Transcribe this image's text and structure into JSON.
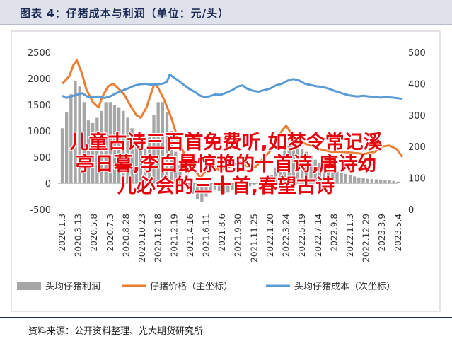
{
  "page": {
    "figure_title": "图表 4：仔猪成本与利润（单位：元/头）",
    "source": "资料来源：公开资料整理、光大期货研究所",
    "overlay_lines": [
      "儿童古诗三百首免费听,如梦令常记溪",
      "亭日暮,李白最惊艳的十首诗,唐诗幼",
      "儿必会的三十首,春望古诗"
    ]
  },
  "colors": {
    "profit": "#a6a6a6",
    "price": "#ed7d31",
    "cost": "#5b9bd5",
    "title_bg": "#dfe2ea",
    "overlay": "#e8000b"
  },
  "chart_data": {
    "type": "bar+line",
    "title": "仔猪成本与利润（单位：元/头）",
    "categories": [
      "2020.1.3",
      "2020.3.13",
      "2020.5.8",
      "2020.7.3",
      "2020.8.28",
      "2020.10.23",
      "2020.12.18",
      "2021.2.19",
      "2021.4.16",
      "2021.6.11",
      "2021.8.6",
      "2021.9.30",
      "2021.11.25",
      "2022.1.20",
      "2022.3.24",
      "2022.5.19",
      "2022.7.14",
      "2022.9.8",
      "2022.11.3",
      "2022.12.29",
      "2023.3.9",
      "2023.5.4"
    ],
    "y_left": {
      "range": [
        -500,
        2500
      ],
      "ticks": [
        -500,
        0,
        500,
        1000,
        1500,
        2000,
        2500
      ]
    },
    "y_right": {
      "range": [
        0,
        500
      ],
      "ticks": [
        0,
        100,
        200,
        300,
        400,
        500
      ]
    },
    "series": [
      {
        "name": "头均仔猪利润",
        "kind": "bar",
        "axis": "left",
        "points": [
          [
            0,
            1050
          ],
          [
            0.6,
            1350
          ],
          [
            1.2,
            1700
          ],
          [
            1.8,
            1950
          ],
          [
            2.4,
            1850
          ],
          [
            3.0,
            1550
          ],
          [
            3.6,
            1200
          ],
          [
            4.2,
            1150
          ],
          [
            4.8,
            1250
          ],
          [
            5.4,
            1380
          ],
          [
            6.0,
            1550
          ],
          [
            6.6,
            1550
          ],
          [
            7.2,
            1500
          ],
          [
            7.8,
            1450
          ],
          [
            8.4,
            1380
          ],
          [
            9.0,
            1250
          ],
          [
            9.6,
            1050
          ],
          [
            10.2,
            850
          ],
          [
            10.8,
            700
          ],
          [
            11.4,
            650
          ],
          [
            12.0,
            950
          ],
          [
            12.6,
            1300
          ],
          [
            13.2,
            1550
          ],
          [
            13.8,
            1550
          ],
          [
            14.4,
            1350
          ],
          [
            15.0,
            1000
          ],
          [
            15.6,
            600
          ],
          [
            16.2,
            350
          ],
          [
            16.8,
            100
          ],
          [
            17.4,
            -80
          ],
          [
            18.0,
            -200
          ],
          [
            18.6,
            -300
          ],
          [
            19.2,
            -350
          ],
          [
            19.8,
            -250
          ],
          [
            20.4,
            -150
          ],
          [
            21.0,
            -120
          ],
          [
            21.6,
            -150
          ],
          [
            22.2,
            -200
          ],
          [
            22.8,
            -180
          ],
          [
            23.4,
            -120
          ],
          [
            24.0,
            -80
          ],
          [
            24.6,
            -60
          ],
          [
            25.2,
            -80
          ],
          [
            25.8,
            -60
          ],
          [
            26.4,
            -30
          ],
          [
            27.0,
            0
          ],
          [
            27.6,
            20
          ],
          [
            28.2,
            60
          ],
          [
            28.8,
            150
          ],
          [
            29.4,
            300
          ],
          [
            30.0,
            550
          ],
          [
            30.6,
            720
          ],
          [
            31.2,
            780
          ],
          [
            31.8,
            760
          ],
          [
            32.4,
            700
          ],
          [
            33.0,
            650
          ],
          [
            33.6,
            600
          ],
          [
            34.2,
            530
          ],
          [
            34.8,
            450
          ],
          [
            35.4,
            380
          ],
          [
            36.0,
            330
          ],
          [
            36.6,
            280
          ],
          [
            37.2,
            250
          ],
          [
            37.8,
            220
          ],
          [
            38.4,
            200
          ],
          [
            39.0,
            180
          ],
          [
            39.6,
            150
          ],
          [
            40.2,
            130
          ],
          [
            40.8,
            110
          ],
          [
            41.4,
            95
          ],
          [
            42.0,
            85
          ],
          [
            42.6,
            80
          ],
          [
            43.2,
            75
          ],
          [
            43.8,
            70
          ],
          [
            44.4,
            65
          ],
          [
            45.0,
            60
          ],
          [
            45.6,
            45
          ],
          [
            46.2,
            30
          ],
          [
            46.8,
            15
          ]
        ]
      },
      {
        "name": "仔猪价格（主坐标）",
        "kind": "line",
        "axis": "left",
        "points": [
          [
            0,
            1900
          ],
          [
            1,
            2050
          ],
          [
            1.5,
            2250
          ],
          [
            2,
            2350
          ],
          [
            2.7,
            2100
          ],
          [
            3.3,
            1800
          ],
          [
            4.2,
            1550
          ],
          [
            5,
            1450
          ],
          [
            5.5,
            1650
          ],
          [
            6.3,
            1850
          ],
          [
            7,
            1900
          ],
          [
            7.8,
            1800
          ],
          [
            8.5,
            1700
          ],
          [
            9.3,
            1500
          ],
          [
            10.2,
            1300
          ],
          [
            10.8,
            1250
          ],
          [
            11.6,
            1450
          ],
          [
            12.3,
            1750
          ],
          [
            12.7,
            1900
          ],
          [
            13.2,
            1820
          ],
          [
            14,
            1600
          ],
          [
            15,
            1250
          ],
          [
            16,
            800
          ],
          [
            17,
            500
          ],
          [
            17.7,
            350
          ],
          [
            18.5,
            200
          ],
          [
            19,
            100
          ],
          [
            19.8,
            250
          ],
          [
            20.6,
            350
          ],
          [
            21.6,
            250
          ],
          [
            22.4,
            280
          ],
          [
            23.5,
            350
          ],
          [
            24.5,
            400
          ],
          [
            25.5,
            320
          ],
          [
            26.5,
            300
          ],
          [
            27.5,
            450
          ],
          [
            28.5,
            600
          ],
          [
            29.5,
            800
          ],
          [
            30.2,
            1000
          ],
          [
            30.8,
            1100
          ],
          [
            31.5,
            950
          ],
          [
            32.5,
            800
          ],
          [
            33.5,
            750
          ],
          [
            34.5,
            700
          ],
          [
            35.5,
            650
          ],
          [
            37,
            600
          ],
          [
            38.5,
            600
          ],
          [
            40,
            580
          ],
          [
            41.5,
            560
          ],
          [
            43,
            600
          ],
          [
            44,
            700
          ],
          [
            45,
            720
          ],
          [
            46,
            650
          ],
          [
            46.8,
            500
          ]
        ]
      },
      {
        "name": "头均仔猪成本（次坐标）",
        "kind": "line",
        "axis": "right",
        "points": [
          [
            0,
            362
          ],
          [
            0.6,
            355
          ],
          [
            1.2,
            360
          ],
          [
            2,
            365
          ],
          [
            2.8,
            370
          ],
          [
            3.4,
            360
          ],
          [
            4.2,
            358
          ],
          [
            5,
            360
          ],
          [
            5.8,
            355
          ],
          [
            6.6,
            360
          ],
          [
            7.4,
            370
          ],
          [
            8.2,
            378
          ],
          [
            9,
            385
          ],
          [
            9.8,
            393
          ],
          [
            10.6,
            398
          ],
          [
            11.4,
            400
          ],
          [
            12.2,
            397
          ],
          [
            13,
            398
          ],
          [
            13.8,
            400
          ],
          [
            14.4,
            406
          ],
          [
            14.8,
            430
          ],
          [
            15.3,
            420
          ],
          [
            16,
            410
          ],
          [
            16.8,
            395
          ],
          [
            17.6,
            382
          ],
          [
            18.4,
            372
          ],
          [
            19,
            362
          ],
          [
            19.6,
            358
          ],
          [
            20.2,
            360
          ],
          [
            21,
            366
          ],
          [
            21.8,
            365
          ],
          [
            22.6,
            372
          ],
          [
            23.4,
            380
          ],
          [
            24.2,
            392
          ],
          [
            24.8,
            395
          ],
          [
            25.4,
            385
          ],
          [
            26.2,
            378
          ],
          [
            27,
            375
          ],
          [
            27.8,
            380
          ],
          [
            28.6,
            385
          ],
          [
            29.4,
            395
          ],
          [
            30.2,
            400
          ],
          [
            31,
            410
          ],
          [
            31.8,
            415
          ],
          [
            32.6,
            410
          ],
          [
            33.4,
            400
          ],
          [
            34.2,
            396
          ],
          [
            35,
            392
          ],
          [
            35.8,
            390
          ],
          [
            36.6,
            385
          ],
          [
            37.4,
            378
          ],
          [
            38.2,
            372
          ],
          [
            39,
            366
          ],
          [
            39.8,
            362
          ],
          [
            40.6,
            360
          ],
          [
            41.4,
            362
          ],
          [
            42.2,
            360
          ],
          [
            43,
            358
          ],
          [
            43.8,
            356
          ],
          [
            44.6,
            358
          ],
          [
            45.4,
            356
          ],
          [
            46.2,
            354
          ],
          [
            46.8,
            352
          ]
        ]
      }
    ],
    "legend": {
      "placement": "bottom",
      "entries": [
        "头均仔猪利润",
        "仔猪价格（主坐标）",
        "头均仔猪成本（次坐标）"
      ]
    }
  }
}
